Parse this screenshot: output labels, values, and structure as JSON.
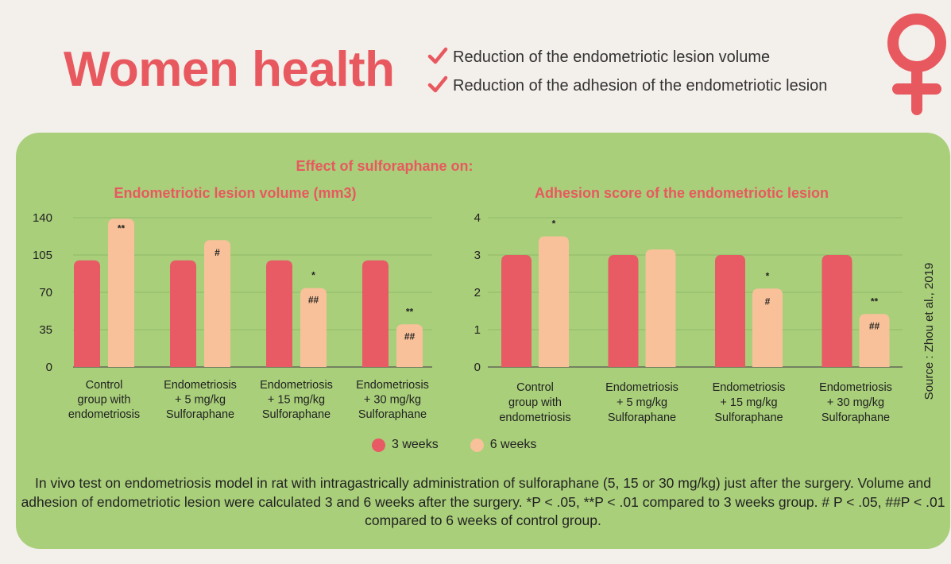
{
  "header": {
    "title": "Women health",
    "benefits": [
      "Reduction of the endometriotic lesion volume",
      "Reduction of the adhesion of the endometriotic lesion"
    ]
  },
  "figure": {
    "heading": "Effect of sulforaphane on:",
    "source": "Source : Zhou et al., 2019",
    "legend": [
      "3 weeks",
      "6 weeks"
    ],
    "footnote": "In vivo test on endometriosis model in rat with intragastrically administration of sulforaphane (5, 15 or 30 mg/kg) just after the surgery. Volume and adhesion of endometriotic lesion were calculated 3 and 6 weeks after the surgery. *P < .05, **P < .01 compared to 3 weeks group. # P < .05, ##P < .01 compared to 6 weeks of control group."
  },
  "colors": {
    "accent": "#e8595f",
    "series_3w": "#e85a64",
    "series_6w": "#f8c19a",
    "panel": "#a9cf7a"
  },
  "chart_data": [
    {
      "type": "bar",
      "title": "Endometriotic lesion volume (mm3)",
      "categories": [
        [
          "Control",
          "group with",
          "endometriosis"
        ],
        [
          "Endometriosis",
          "+ 5 mg/kg",
          "Sulforaphane"
        ],
        [
          "Endometriosis",
          "+ 15 mg/kg",
          "Sulforaphane"
        ],
        [
          "Endometriosis",
          "+ 30 mg/kg",
          "Sulforaphane"
        ]
      ],
      "series": [
        {
          "name": "3 weeks",
          "values": [
            100,
            100,
            100,
            100
          ]
        },
        {
          "name": "6 weeks",
          "values": [
            139,
            119,
            74,
            40
          ]
        }
      ],
      "annotations_6w": [
        [
          "**"
        ],
        [
          "#"
        ],
        [
          "*",
          "##"
        ],
        [
          "**",
          "##"
        ]
      ],
      "yticks": [
        0,
        35,
        70,
        105,
        140
      ],
      "ylim": [
        0,
        140
      ],
      "grid": true
    },
    {
      "type": "bar",
      "title": "Adhesion score of the endometriotic lesion",
      "categories": [
        [
          "Control",
          "group with",
          "endometriosis"
        ],
        [
          "Endometriosis",
          "+ 5 mg/kg",
          "Sulforaphane"
        ],
        [
          "Endometriosis",
          "+ 15 mg/kg",
          "Sulforaphane"
        ],
        [
          "Endometriosis",
          "+ 30 mg/kg",
          "Sulforaphane"
        ]
      ],
      "series": [
        {
          "name": "3 weeks",
          "values": [
            3,
            3,
            3,
            3
          ]
        },
        {
          "name": "6 weeks",
          "values": [
            3.5,
            3.15,
            2.1,
            1.42
          ]
        }
      ],
      "annotations_6w": [
        [
          "*"
        ],
        [],
        [
          "*",
          "#"
        ],
        [
          "**",
          "##"
        ]
      ],
      "yticks": [
        0,
        1,
        2,
        3,
        4
      ],
      "ylim": [
        0,
        4
      ],
      "grid": true
    }
  ]
}
